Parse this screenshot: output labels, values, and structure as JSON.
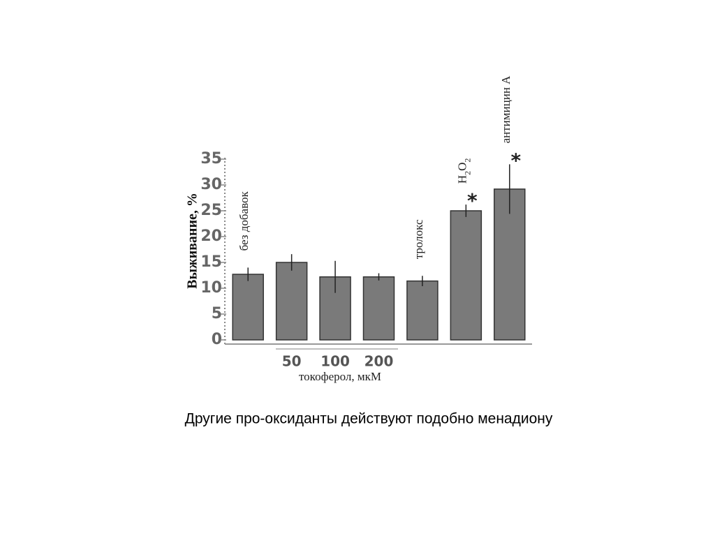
{
  "chart_data": {
    "type": "bar",
    "ylabel": "Выживание, %",
    "categories": [
      "без добавок",
      "50",
      "100",
      "200",
      "тролокс",
      "H2O2",
      "антимицин А"
    ],
    "group_label": "токоферол, мкМ",
    "values": [
      12.7,
      15.0,
      12.2,
      12.2,
      11.4,
      25.0,
      29.2
    ],
    "errors": [
      1.3,
      1.6,
      3.1,
      0.7,
      1.0,
      1.2,
      4.8
    ],
    "value_annotations": [
      null,
      null,
      null,
      null,
      null,
      "*",
      "*"
    ],
    "color": "#7a7a7a",
    "ylim": [
      0,
      35
    ],
    "yticks": [
      0,
      5,
      10,
      15,
      20,
      25,
      30,
      35
    ]
  },
  "caption": "Другие про-оксиданты действуют подобно менадиону"
}
